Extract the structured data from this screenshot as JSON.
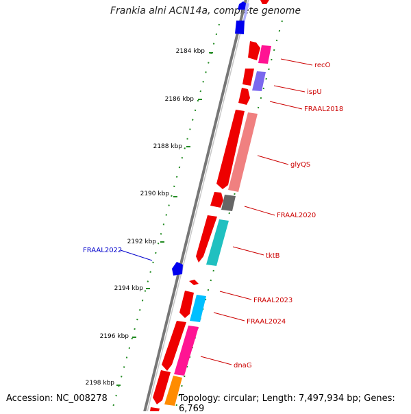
{
  "title": "Frankia alni ACN14a, complete genome",
  "accession": "Accession: NC_008278",
  "topology": "Topology: circular; Length: 7,497,934 bp; Genes: 6,769",
  "scale_labels": [
    "2184 kbp",
    "2186 kbp",
    "2188 kbp",
    "2190 kbp",
    "2192 kbp",
    "2194 kbp",
    "2196 kbp",
    "2198 kbp"
  ],
  "genes": {
    "recO": "recO",
    "ispU": "ispU",
    "FRAAL2018": "FRAAL2018",
    "glyQS": "glyQS",
    "FRAAL2020": "FRAAL2020",
    "tktB": "tktB",
    "FRAAL2022": "FRAAL2022",
    "FRAAL2023": "FRAAL2023",
    "FRAAL2024": "FRAAL2024",
    "dnaG": "dnaG"
  },
  "colors": {
    "forward_strand": "#ff0000",
    "reverse_strand": "#0000ff",
    "backbone": "#777777",
    "tick": "#228b22",
    "label_forward": "#cc0000",
    "label_reverse": "#0000cc"
  }
}
